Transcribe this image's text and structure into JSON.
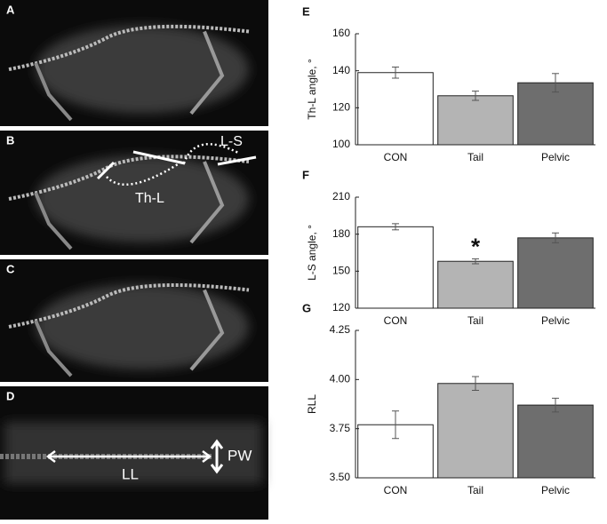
{
  "images": [
    {
      "label": "A"
    },
    {
      "label": "B",
      "annotations": [
        "L-S",
        "Th-L"
      ]
    },
    {
      "label": "C"
    },
    {
      "label": "D",
      "annotations": [
        "LL",
        "PW"
      ]
    }
  ],
  "chart_data": [
    {
      "panel": "E",
      "type": "bar",
      "ylabel": "Th-L angle, °",
      "categories": [
        "CON",
        "Tail",
        "Pelvic"
      ],
      "values": [
        139,
        126.5,
        133.5
      ],
      "errors": [
        3,
        2.5,
        5
      ],
      "colors": [
        "#ffffff",
        "#b4b4b4",
        "#6e6e6e"
      ],
      "ylim": [
        100,
        160
      ],
      "yticks": [
        100,
        120,
        140,
        160
      ]
    },
    {
      "panel": "F",
      "type": "bar",
      "ylabel": "L-S angle, °",
      "categories": [
        "CON",
        "Tail",
        "Pelvic"
      ],
      "values": [
        186,
        158,
        177
      ],
      "errors": [
        2.5,
        2,
        4
      ],
      "colors": [
        "#ffffff",
        "#b4b4b4",
        "#6e6e6e"
      ],
      "ylim": [
        120,
        210
      ],
      "yticks": [
        120,
        150,
        180,
        210
      ],
      "annotation": "*"
    },
    {
      "panel": "G",
      "type": "bar",
      "ylabel": "RLL",
      "categories": [
        "CON",
        "Tail",
        "Pelvic"
      ],
      "values": [
        3.77,
        3.98,
        3.87
      ],
      "errors": [
        0.07,
        0.035,
        0.035
      ],
      "colors": [
        "#ffffff",
        "#b4b4b4",
        "#6e6e6e"
      ],
      "ylim": [
        3.5,
        4.25
      ],
      "yticks": [
        {
          "value": 3.5,
          "label": "3.50"
        },
        {
          "value": 3.75,
          "label": "3.75"
        },
        {
          "value": 4,
          "label": "4.00"
        },
        {
          "value": 4.25,
          "label": "4.25"
        }
      ]
    }
  ]
}
